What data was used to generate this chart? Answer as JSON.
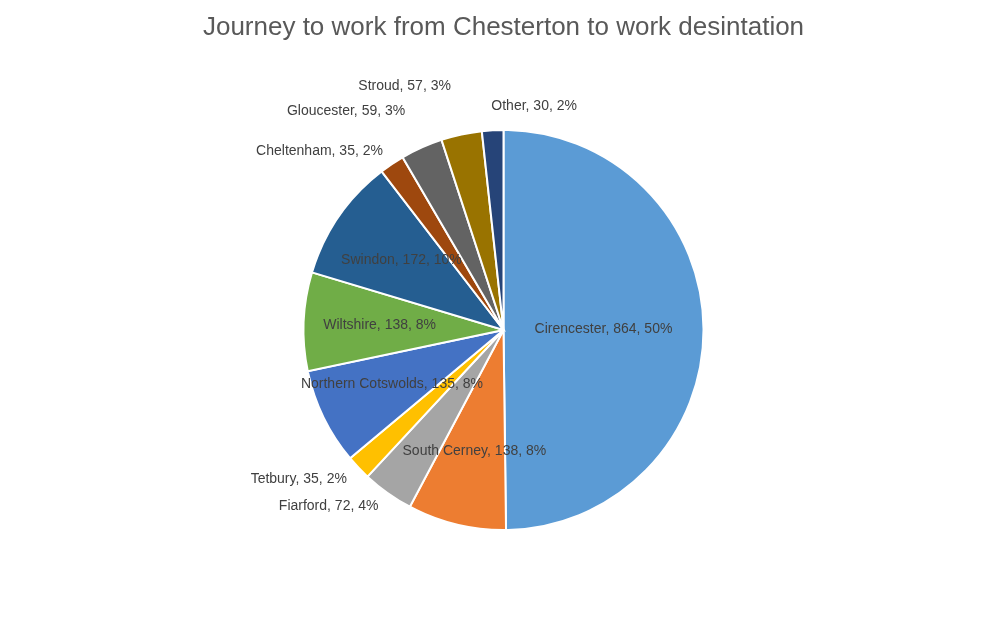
{
  "chart_data": {
    "type": "pie",
    "title": "Journey to work from Chesterton to work desintation",
    "categories": [
      "Cirencester",
      "South Cerney",
      "Fiarford",
      "Tetbury",
      "Northern Cotswolds",
      "Wiltshire",
      "Swindon",
      "Cheltenham",
      "Gloucester",
      "Stroud",
      "Other"
    ],
    "values": [
      864,
      138,
      72,
      35,
      135,
      138,
      172,
      35,
      59,
      57,
      30
    ],
    "colors": [
      "#5b9bd5",
      "#ed7d31",
      "#a5a5a5",
      "#ffc000",
      "#4472c4",
      "#70ad47",
      "#255e91",
      "#9e480e",
      "#636363",
      "#997300",
      "#264478"
    ],
    "value_labels": [
      "864, 50%",
      "138, 8%",
      "72, 4%",
      "35, 2%",
      "135, 8%",
      "138, 8%",
      "172, 10%",
      "35, 2%",
      "59, 3%",
      "57, 3%",
      "30, 2%"
    ]
  }
}
